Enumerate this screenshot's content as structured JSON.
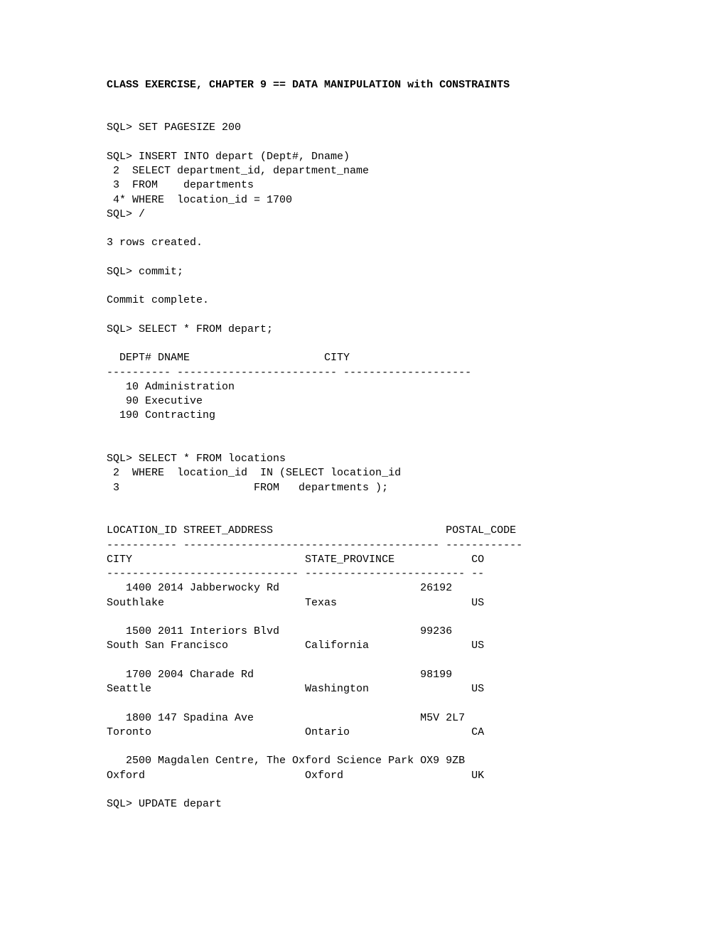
{
  "title": "CLASS EXERCISE, CHAPTER 9 == DATA MANIPULATION with CONSTRAINTS",
  "sql_content": "SQL> SET PAGESIZE 200\n\nSQL> INSERT INTO depart (Dept#, Dname)\n 2  SELECT department_id, department_name\n 3  FROM    departments\n 4* WHERE  location_id = 1700\nSQL> /\n\n3 rows created.\n\nSQL> commit;\n\nCommit complete.\n\nSQL> SELECT * FROM depart;\n\n  DEPT# DNAME                     CITY\n---------- ------------------------- --------------------\n   10 Administration\n   90 Executive\n  190 Contracting\n\n\nSQL> SELECT * FROM locations\n 2  WHERE  location_id  IN (SELECT location_id\n 3                     FROM   departments );\n\n\nLOCATION_ID STREET_ADDRESS                           POSTAL_CODE\n----------- ---------------------------------------- ------------\nCITY                           STATE_PROVINCE            CO\n------------------------------ ------------------------- --\n   1400 2014 Jabberwocky Rd                      26192\nSouthlake                      Texas                     US\n\n   1500 2011 Interiors Blvd                      99236\nSouth San Francisco            California                US\n\n   1700 2004 Charade Rd                          98199\nSeattle                        Washington                US\n\n   1800 147 Spadina Ave                          M5V 2L7\nToronto                        Ontario                   CA\n\n   2500 Magdalen Centre, The Oxford Science Park OX9 9ZB\nOxford                         Oxford                    UK\n\nSQL> UPDATE depart",
  "colors": {
    "background": "#ffffff",
    "text": "#000000"
  },
  "typography": {
    "font_family": "Courier New",
    "font_size_pt": 11,
    "title_weight": "bold"
  }
}
